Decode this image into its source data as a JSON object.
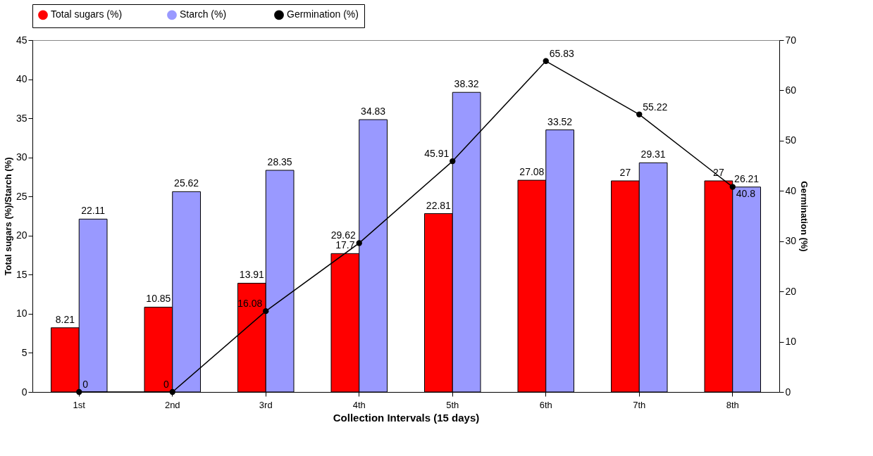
{
  "chart_data": {
    "type": "bar",
    "xlabel": "Collection Intervals (15 days)",
    "ylabel": "Total sugars (%)/Starch (%)",
    "y2label": "Germination (%)",
    "categories": [
      "1st",
      "2nd",
      "3rd",
      "4th",
      "5th",
      "6th",
      "7th",
      "8th"
    ],
    "series": [
      {
        "name": "Total sugars (%)",
        "color": "#ff0000",
        "values": [
          8.21,
          10.85,
          13.91,
          17.7,
          22.81,
          27.08,
          27,
          27
        ]
      },
      {
        "name": "Starch  (%)",
        "color": "#9999ff",
        "values": [
          22.11,
          25.62,
          28.35,
          34.83,
          38.32,
          33.52,
          29.31,
          26.21
        ]
      },
      {
        "name": "Germination (%)",
        "type": "line",
        "axis": "y2",
        "color": "#000000",
        "marker": "circle",
        "values": [
          0,
          0,
          16.08,
          29.62,
          45.91,
          65.83,
          55.22,
          40.8
        ]
      }
    ],
    "ylim": [
      0,
      45
    ],
    "yticks": [
      0,
      5,
      10,
      15,
      20,
      25,
      30,
      35,
      40,
      45
    ],
    "y2lim": [
      0,
      70
    ],
    "y2ticks": [
      0,
      10,
      20,
      30,
      40,
      50,
      60,
      70
    ],
    "data_labels": true,
    "grid": false,
    "legend": "top"
  }
}
